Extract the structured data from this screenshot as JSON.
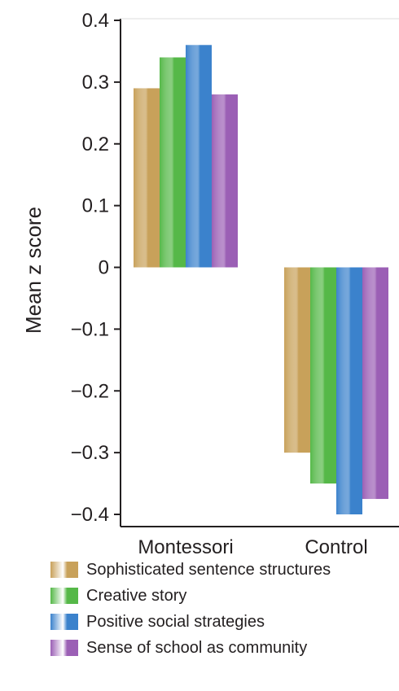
{
  "chart_data": {
    "type": "bar",
    "categories": [
      "Montessori",
      "Control"
    ],
    "series": [
      {
        "name": "Sophisticated sentence structures",
        "values": [
          0.29,
          -0.3
        ],
        "color": "#c8a15a"
      },
      {
        "name": "Creative story",
        "values": [
          0.34,
          -0.35
        ],
        "color": "#55b848"
      },
      {
        "name": "Positive social strategies",
        "values": [
          0.36,
          -0.4
        ],
        "color": "#3b82cc"
      },
      {
        "name": "Sense of school as community",
        "values": [
          0.28,
          -0.375
        ],
        "color": "#9b5fb5"
      }
    ],
    "ylabel": "Mean z score",
    "ylim": [
      -0.4,
      0.4
    ],
    "yticks": [
      "0.4",
      "0.3",
      "0.2",
      "0.1",
      "0",
      "−0.1",
      "−0.2",
      "−0.3",
      "−0.4"
    ],
    "grid": false,
    "legend_position": "bottom"
  }
}
